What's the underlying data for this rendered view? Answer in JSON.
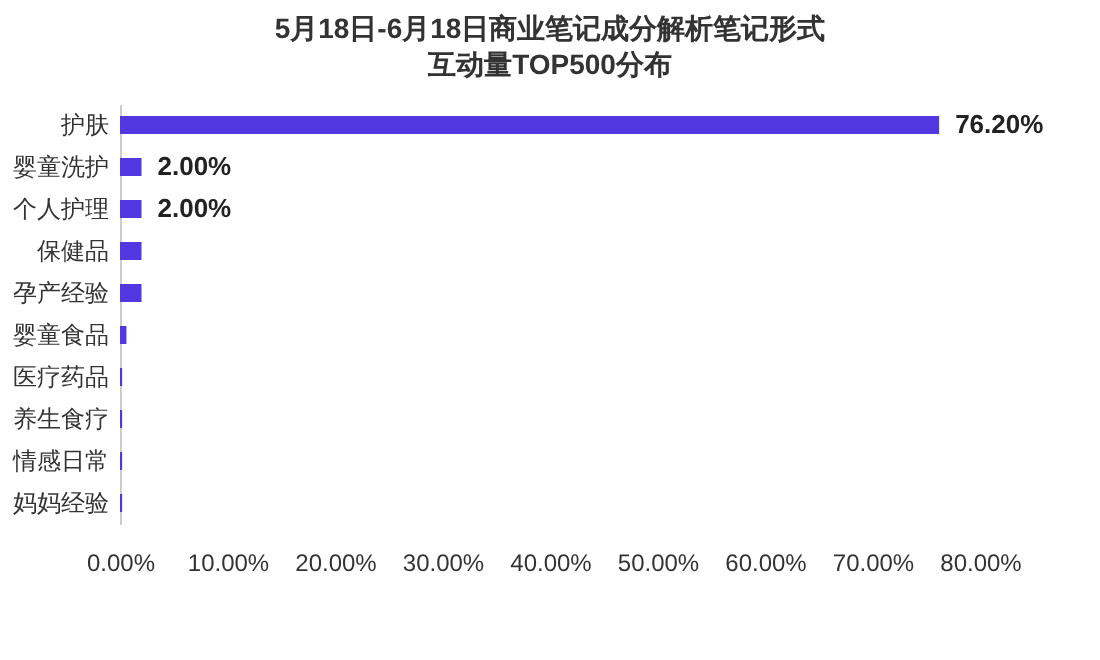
{
  "chart_data": {
    "type": "bar",
    "orientation": "horizontal",
    "title": "5月18日-6月18日商业笔记成分解析笔记形式",
    "subtitle": "互动量TOP500分布",
    "categories": [
      "护肤",
      "婴童洗护",
      "个人护理",
      "保健品",
      "孕产经验",
      "婴童食品",
      "医疗药品",
      "养生食疗",
      "情感日常",
      "妈妈经验"
    ],
    "values": [
      76.2,
      2.0,
      2.0,
      2.0,
      2.0,
      0.6,
      0.2,
      0.2,
      0.2,
      0.2
    ],
    "value_labels": [
      "76.20%",
      "2.00%",
      "2.00%",
      null,
      null,
      null,
      null,
      null,
      null,
      null
    ],
    "color": "#5138e0",
    "xlim": [
      0,
      80
    ],
    "xticks": [
      {
        "value": 0,
        "label": "0.00%"
      },
      {
        "value": 10,
        "label": "10.00%"
      },
      {
        "value": 20,
        "label": "20.00%"
      },
      {
        "value": 30,
        "label": "30.00%"
      },
      {
        "value": 40,
        "label": "40.00%"
      },
      {
        "value": 50,
        "label": "50.00%"
      },
      {
        "value": 60,
        "label": "60.00%"
      },
      {
        "value": 70,
        "label": "70.00%"
      },
      {
        "value": 80,
        "label": "80.00%"
      }
    ],
    "grid": false
  }
}
